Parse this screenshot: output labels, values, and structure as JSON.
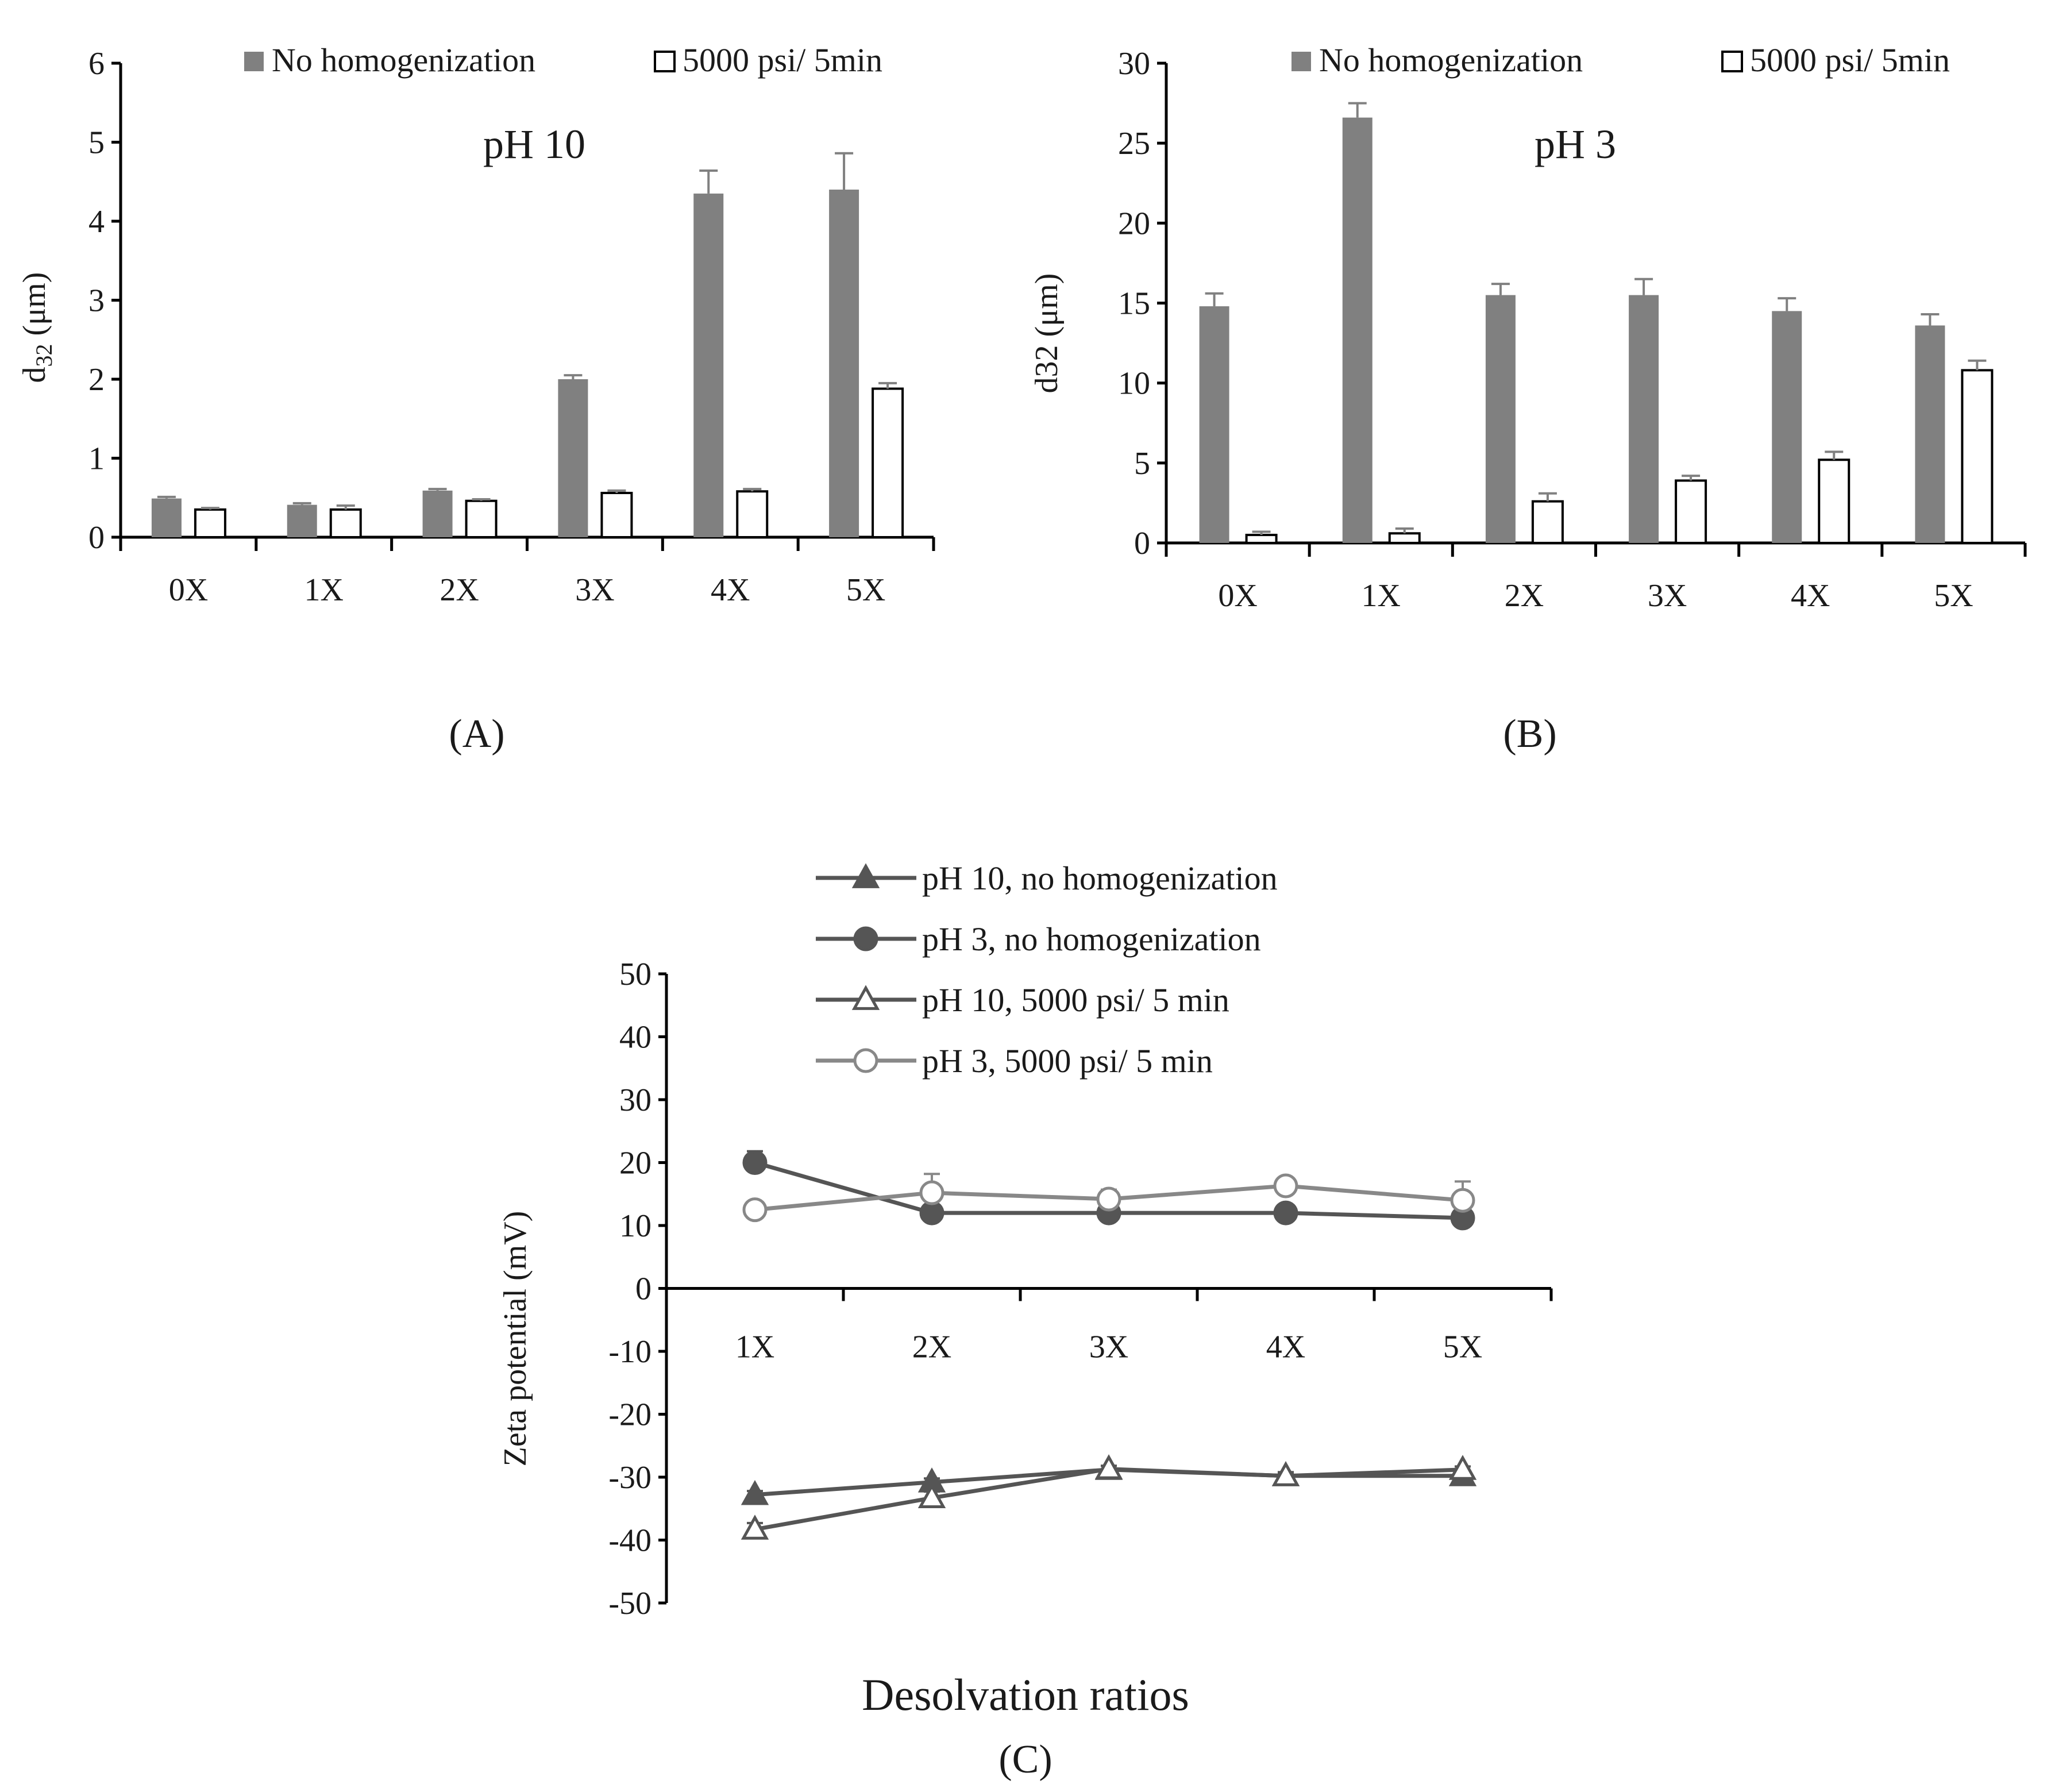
{
  "chart_data": [
    {
      "panel": "A",
      "panel_label": "(A)",
      "type": "bar",
      "title": "pH 10",
      "xlabel": "",
      "ylabel_main": "d",
      "ylabel_sub": "32",
      "ylabel_unit": " (μm)",
      "categories": [
        "0X",
        "1X",
        "2X",
        "3X",
        "4X",
        "5X"
      ],
      "ylim": [
        0,
        6
      ],
      "yticks": [
        "0",
        "1",
        "2",
        "3",
        "4",
        "5",
        "6"
      ],
      "legend_position": "top",
      "series": [
        {
          "name": "No homogenization",
          "color": "#808080",
          "values": [
            0.49,
            0.41,
            0.59,
            2.0,
            4.35,
            4.4
          ],
          "errors": [
            0.02,
            0.02,
            0.02,
            0.05,
            0.29,
            0.46
          ]
        },
        {
          "name": "5000 psi/ 5min",
          "color": "#ffffff",
          "values": [
            0.35,
            0.35,
            0.46,
            0.56,
            0.58,
            1.88
          ],
          "errors": [
            0.02,
            0.05,
            0.02,
            0.03,
            0.03,
            0.07
          ]
        }
      ]
    },
    {
      "panel": "B",
      "panel_label": "(B)",
      "type": "bar",
      "title": "pH 3",
      "xlabel": "",
      "ylabel": "d32 (μm)",
      "categories": [
        "0X",
        "1X",
        "2X",
        "3X",
        "4X",
        "5X"
      ],
      "ylim": [
        0,
        30
      ],
      "yticks": [
        "0",
        "5",
        "10",
        "15",
        "20",
        "25",
        "30"
      ],
      "legend_position": "top",
      "series": [
        {
          "name": "No homogenization",
          "color": "#808080",
          "values": [
            14.8,
            26.6,
            15.5,
            15.5,
            14.5,
            13.6
          ],
          "errors": [
            0.8,
            0.9,
            0.7,
            1.0,
            0.8,
            0.7
          ]
        },
        {
          "name": "5000 psi/ 5min",
          "color": "#ffffff",
          "values": [
            0.5,
            0.6,
            2.6,
            3.9,
            5.2,
            10.8
          ],
          "errors": [
            0.2,
            0.3,
            0.5,
            0.3,
            0.5,
            0.6
          ]
        }
      ]
    },
    {
      "panel": "C",
      "panel_label": "(C)",
      "type": "line",
      "xlabel": "Desolvation ratios",
      "ylabel": "Zeta potential (mV)",
      "categories": [
        "1X",
        "2X",
        "3X",
        "4X",
        "5X"
      ],
      "ylim": [
        -50,
        50
      ],
      "yticks": [
        "-50",
        "-40",
        "-30",
        "-20",
        "-10",
        "0",
        "10",
        "20",
        "30",
        "40",
        "50"
      ],
      "legend_position": "top",
      "series": [
        {
          "name": "pH 10, no homogenization",
          "color": "#555555",
          "marker": "triangle-filled",
          "values": [
            -32.8,
            -30.8,
            -28.8,
            -29.8,
            -29.8
          ],
          "errors": [
            0.6,
            0.6,
            0.6,
            0.6,
            0.6
          ]
        },
        {
          "name": "pH 3, no homogenization",
          "color": "#555555",
          "marker": "circle-filled",
          "values": [
            20.0,
            12.0,
            12.0,
            12.0,
            11.2
          ],
          "errors": [
            1.8,
            0.5,
            0.5,
            0.5,
            0.5
          ]
        },
        {
          "name": "pH 10, 5000 psi/ 5 min",
          "color": "#555555",
          "marker": "triangle-open",
          "values": [
            -38.3,
            -33.3,
            -28.7,
            -29.8,
            -28.8
          ],
          "errors": [
            1.0,
            1.0,
            0.5,
            0.5,
            0.5
          ]
        },
        {
          "name": "pH 3, 5000 psi/ 5 min",
          "color": "#888888",
          "marker": "circle-open",
          "values": [
            12.5,
            15.2,
            14.2,
            16.3,
            14.0
          ],
          "errors": [
            1.0,
            3.0,
            1.5,
            1.0,
            3.0
          ]
        }
      ]
    }
  ]
}
